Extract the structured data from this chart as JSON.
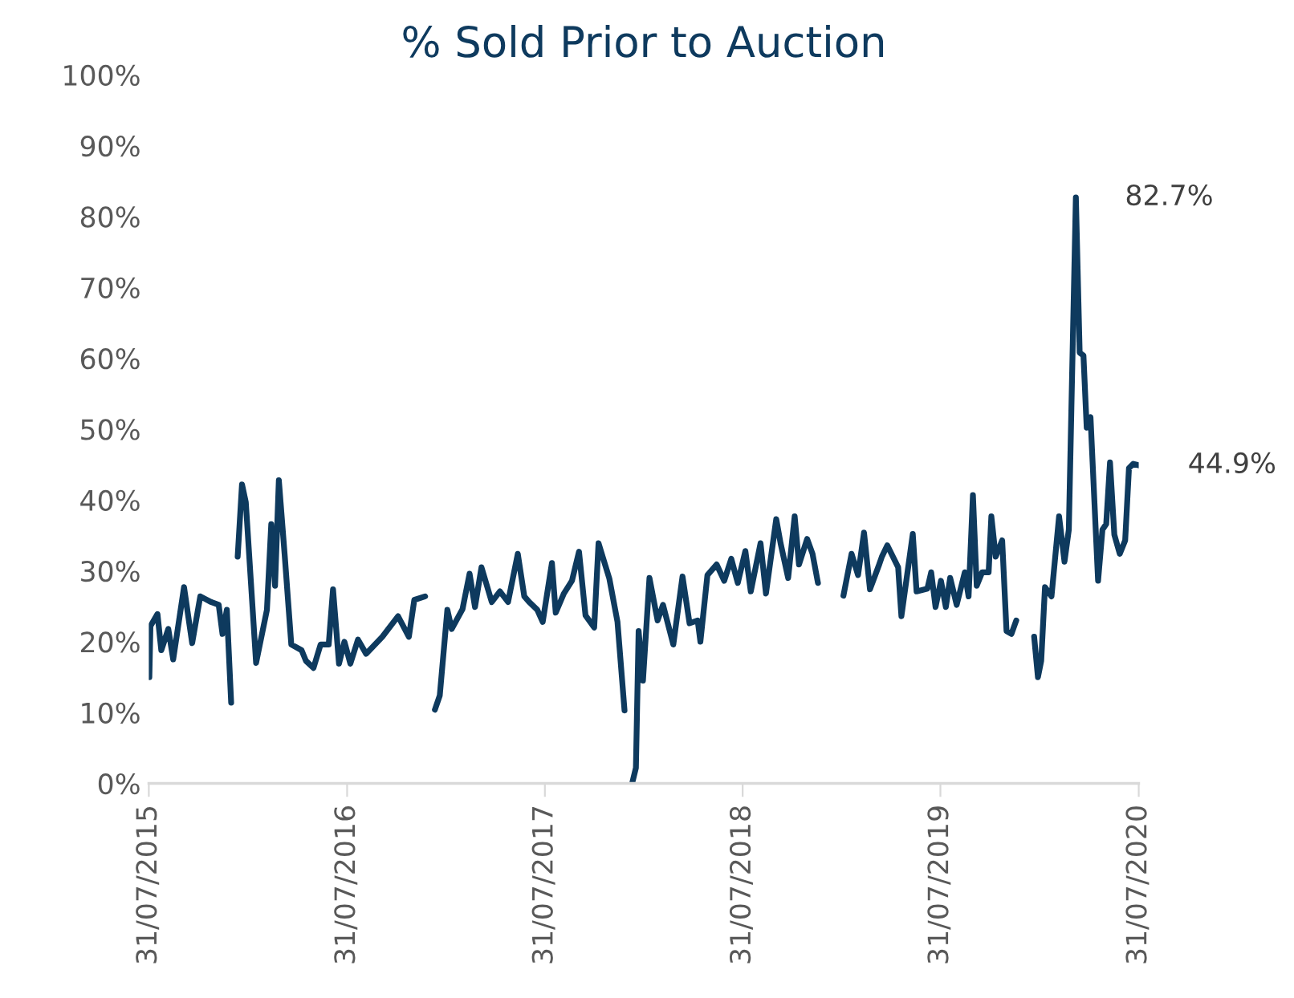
{
  "chart_data": {
    "type": "line",
    "title": "% Sold Prior to Auction",
    "x": [
      "2015-08-01",
      "2015-08-03",
      "2015-08-16",
      "2015-08-23",
      "2015-09-05",
      "2015-09-14",
      "2015-10-04",
      "2015-10-19",
      "2015-11-03",
      "2015-11-23",
      "2015-12-07",
      "2015-12-14",
      "2015-12-22",
      "2015-12-30",
      "2016-01-05",
      "2016-01-11",
      "2016-01-19",
      "2016-01-26",
      "2016-02-14",
      "2016-03-05",
      "2016-03-13",
      "2016-03-20",
      "2016-03-27",
      "2016-04-07",
      "2016-04-19",
      "2016-05-08",
      "2016-05-16",
      "2016-05-30",
      "2016-06-12",
      "2016-06-27",
      "2016-07-05",
      "2016-07-16",
      "2016-07-26",
      "2016-08-06",
      "2016-08-20",
      "2016-09-04",
      "2016-10-04",
      "2016-11-02",
      "2016-11-22",
      "2016-12-02",
      "2016-12-22",
      "2016-12-31",
      "2017-01-09",
      "2017-01-18",
      "2017-02-01",
      "2017-02-09",
      "2017-03-01",
      "2017-03-14",
      "2017-03-24",
      "2017-04-05",
      "2017-04-24",
      "2017-05-09",
      "2017-05-24",
      "2017-06-11",
      "2017-06-23",
      "2017-07-02",
      "2017-07-17",
      "2017-07-27",
      "2017-08-13",
      "2017-08-20",
      "2017-09-04",
      "2017-09-19",
      "2017-10-02",
      "2017-10-14",
      "2017-10-30",
      "2017-11-07",
      "2017-11-27",
      "2017-12-12",
      "2017-12-25",
      "2018-01-01",
      "2018-01-08",
      "2018-01-15",
      "2018-01-20",
      "2018-01-28",
      "2018-02-09",
      "2018-02-24",
      "2018-03-06",
      "2018-03-25",
      "2018-04-11",
      "2018-04-24",
      "2018-05-09",
      "2018-05-14",
      "2018-05-27",
      "2018-06-13",
      "2018-06-27",
      "2018-07-10",
      "2018-07-22",
      "2018-08-05",
      "2018-08-15",
      "2018-09-02",
      "2018-09-12",
      "2018-10-01",
      "2018-10-09",
      "2018-10-23",
      "2018-11-04",
      "2018-11-12",
      "2018-11-27",
      "2018-12-07",
      "2018-12-17",
      "2019-01-10",
      "2019-02-02",
      "2019-02-17",
      "2019-03-01",
      "2019-03-12",
      "2019-03-23",
      "2019-04-09",
      "2019-04-14",
      "2019-04-24",
      "2019-05-14",
      "2019-05-20",
      "2019-06-10",
      "2019-06-17",
      "2019-07-07",
      "2019-07-14",
      "2019-07-22",
      "2019-08-01",
      "2019-08-10",
      "2019-08-18",
      "2019-08-30",
      "2019-09-14",
      "2019-09-21",
      "2019-09-29",
      "2019-10-06",
      "2019-10-16",
      "2019-10-28",
      "2019-11-02",
      "2019-11-10",
      "2019-11-22",
      "2019-11-30",
      "2019-12-09",
      "2019-12-18",
      "2020-01-05",
      "2020-01-20",
      "2020-01-27",
      "2020-02-02",
      "2020-02-09",
      "2020-02-21",
      "2020-03-06",
      "2020-03-16",
      "2020-03-24",
      "2020-04-06",
      "2020-04-13",
      "2020-04-20",
      "2020-04-26",
      "2020-05-03",
      "2020-05-17",
      "2020-05-25",
      "2020-06-01",
      "2020-06-08",
      "2020-06-16",
      "2020-06-26",
      "2020-07-06",
      "2020-07-13",
      "2020-07-21",
      "2020-07-31"
    ],
    "series": [
      {
        "color": "#0e3a5e",
        "values": [
          15.0,
          22.2,
          23.9,
          18.8,
          21.8,
          17.5,
          27.7,
          19.8,
          26.4,
          25.6,
          25.2,
          21.1,
          24.5,
          11.4,
          null,
          32.0,
          42.2,
          39.7,
          17.0,
          24.5,
          36.6,
          27.9,
          42.8,
          32.0,
          19.6,
          18.8,
          17.3,
          16.3,
          19.6,
          19.6,
          27.4,
          16.9,
          20.0,
          16.9,
          20.3,
          18.3,
          20.7,
          23.6,
          20.7,
          25.9,
          26.4,
          null,
          10.4,
          12.4,
          24.5,
          21.8,
          24.6,
          29.6,
          24.9,
          30.5,
          25.6,
          27.1,
          25.6,
          32.4,
          26.4,
          25.6,
          24.5,
          22.8,
          31.1,
          24.1,
          26.8,
          28.6,
          32.7,
          23.7,
          22.0,
          33.9,
          28.9,
          22.8,
          10.3,
          null,
          0.0,
          2.2,
          21.5,
          14.5,
          29.0,
          23.0,
          25.2,
          19.6,
          29.2,
          22.6,
          23.0,
          20.0,
          29.4,
          30.9,
          28.6,
          31.7,
          28.3,
          32.8,
          27.1,
          33.9,
          26.8,
          37.3,
          33.9,
          29.0,
          37.7,
          30.9,
          34.5,
          32.4,
          28.3,
          null,
          26.5,
          32.4,
          29.4,
          35.4,
          27.4,
          30.9,
          32.0,
          33.6,
          30.5,
          23.6,
          35.2,
          27.1,
          27.5,
          29.8,
          24.9,
          28.6,
          24.9,
          29.0,
          25.2,
          29.8,
          26.4,
          40.7,
          27.9,
          29.8,
          29.8,
          37.7,
          32.0,
          34.3,
          21.5,
          21.1,
          23.0,
          null,
          20.7,
          15.0,
          17.3,
          27.7,
          26.4,
          37.7,
          31.3,
          35.8,
          82.7,
          60.8,
          60.4,
          50.2,
          51.7,
          28.6,
          35.8,
          36.6,
          45.3,
          35.1,
          32.4,
          34.3,
          44.5,
          45.1,
          44.9
        ]
      }
    ],
    "xlim": [
      "2015-07-31",
      "2020-07-31"
    ],
    "xticks": [
      {
        "value": "2015-07-31",
        "label": "31/07/2015"
      },
      {
        "value": "2016-07-31",
        "label": "31/07/2016"
      },
      {
        "value": "2017-07-31",
        "label": "31/07/2017"
      },
      {
        "value": "2018-07-31",
        "label": "31/07/2018"
      },
      {
        "value": "2019-07-31",
        "label": "31/07/2019"
      },
      {
        "value": "2020-07-31",
        "label": "31/07/2020"
      }
    ],
    "ylim": [
      0,
      100
    ],
    "yticks": [
      {
        "value": 0,
        "label": "0%"
      },
      {
        "value": 10,
        "label": "10%"
      },
      {
        "value": 20,
        "label": "20%"
      },
      {
        "value": 30,
        "label": "30%"
      },
      {
        "value": 40,
        "label": "40%"
      },
      {
        "value": 50,
        "label": "50%"
      },
      {
        "value": 60,
        "label": "60%"
      },
      {
        "value": 70,
        "label": "70%"
      },
      {
        "value": 80,
        "label": "80%"
      },
      {
        "value": 90,
        "label": "90%"
      },
      {
        "value": 100,
        "label": "100%"
      }
    ],
    "annotations": [
      {
        "text": "82.7%",
        "x": "2020-04-06",
        "y": 82.7
      },
      {
        "text": "44.9%",
        "x": "2020-07-31",
        "y": 44.9
      }
    ],
    "grid": false,
    "legend": false
  }
}
